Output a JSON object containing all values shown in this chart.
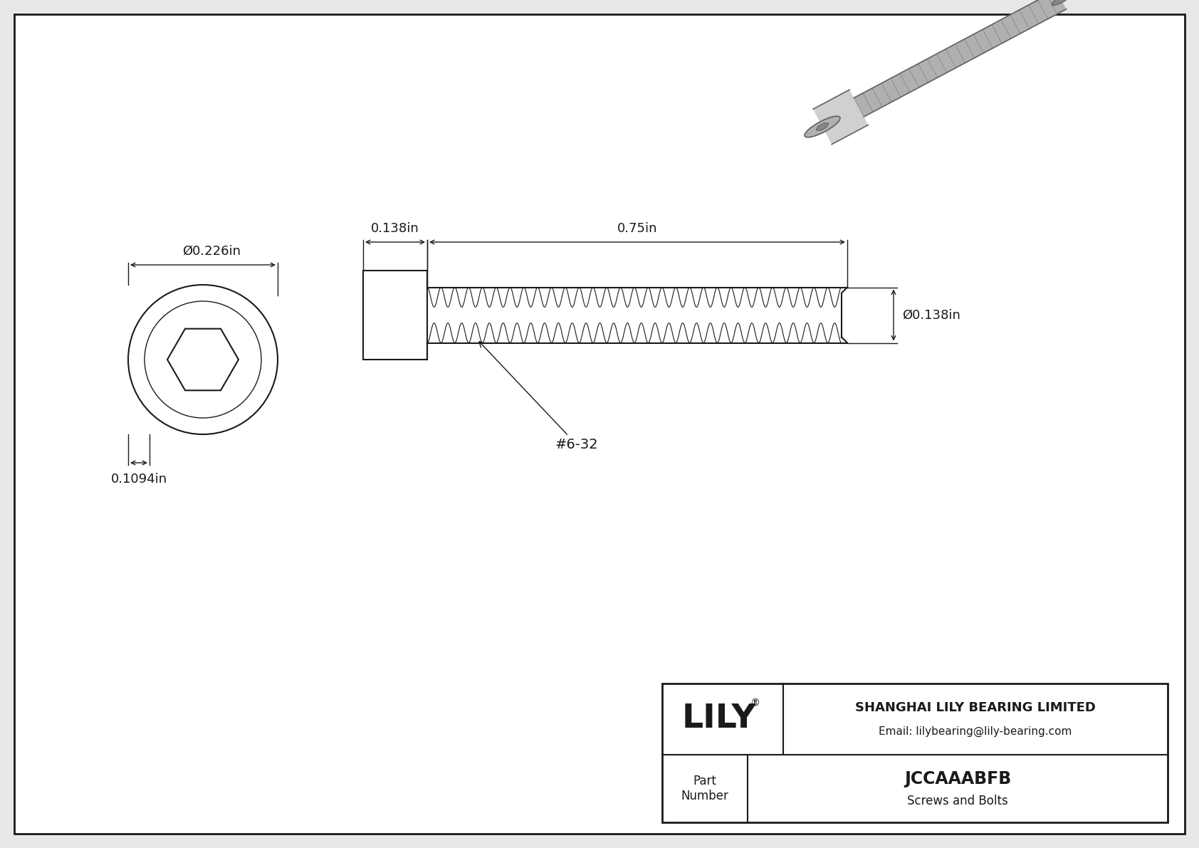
{
  "bg_color": "#e8e8e8",
  "line_color": "#1a1a1a",
  "title": "JCCAAABFB",
  "subtitle": "Screws and Bolts",
  "company_name": "SHANGHAI LILY BEARING LIMITED",
  "company_email": "Email: lilybearing@lily-bearing.com",
  "logo_text": "LILY",
  "part_label": "Part\nNumber",
  "dim_head_diameter": "Ø0.226in",
  "dim_head_height": "0.1094in",
  "dim_thread_length": "0.75in",
  "dim_head_length": "0.138in",
  "dim_thread_diameter": "Ø0.138in",
  "dim_thread_spec": "#6-32"
}
